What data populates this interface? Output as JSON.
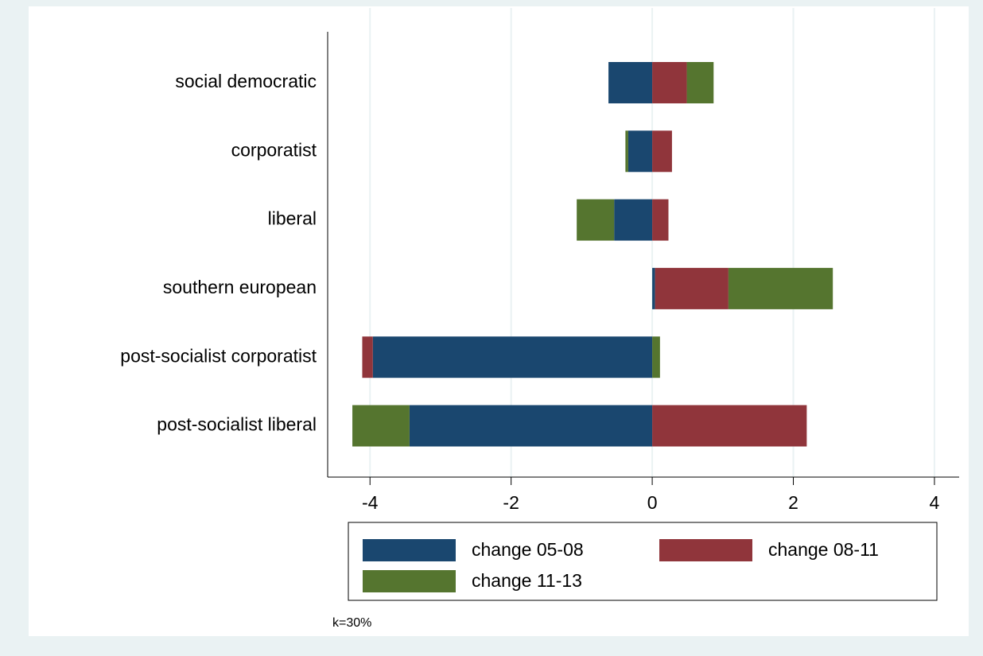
{
  "chart_data": {
    "type": "bar",
    "orientation": "horizontal",
    "stacked": true,
    "categories": [
      "social democratic",
      "corporatist",
      "liberal",
      "southern european",
      "post-socialist corporatist",
      "post-socialist liberal"
    ],
    "series": [
      {
        "name": "change 05-08",
        "color": "#1a476f",
        "values": [
          -0.62,
          -0.34,
          -0.54,
          0.04,
          -3.96,
          -3.44
        ]
      },
      {
        "name": "change 08-11",
        "color": "#90353b",
        "values": [
          0.49,
          0.28,
          0.23,
          1.04,
          -0.15,
          2.19
        ]
      },
      {
        "name": "change 11-13",
        "color": "#55752f",
        "values": [
          0.38,
          -0.04,
          -0.53,
          1.48,
          0.11,
          -0.81
        ]
      }
    ],
    "xlim": [
      -4.6,
      4.35
    ],
    "xticks": [
      -4,
      -2,
      0,
      2,
      4
    ],
    "grid": true,
    "note": "k=30%"
  }
}
